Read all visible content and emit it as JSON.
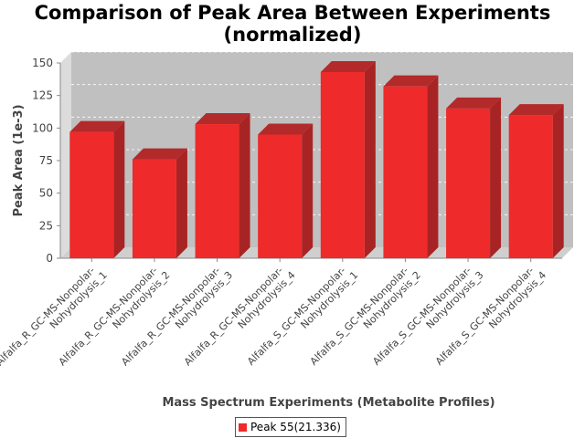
{
  "chart_data": {
    "type": "bar",
    "title": [
      "Comparison of Peak Area Between Experiments",
      "(normalized)"
    ],
    "xlabel": "Mass Spectrum Experiments (Metabolite Profiles)",
    "ylabel": "Peak Area (1e-3)",
    "ylim": [
      0,
      150
    ],
    "yticks": [
      0,
      25,
      50,
      75,
      100,
      125,
      150
    ],
    "categories": [
      [
        "Alfalfa_R_GC-MS-Nonpolar-",
        "Nohydrolysis_1"
      ],
      [
        "Alfalfa_R_GC-MS-Nonpolar-",
        "Nohydrolysis_2"
      ],
      [
        "Alfalfa_R_GC-MS-Nonpolar-",
        "Nohydrolysis_3"
      ],
      [
        "Alfalfa_R_GC-MS-Nonpolar-",
        "Nohydrolysis_4"
      ],
      [
        "Alfalfa_S_GC-MS-Nonpolar-",
        "Nohydrolysis_1"
      ],
      [
        "Alfalfa_S_GC-MS-Nonpolar-",
        "Nohydrolysis_2"
      ],
      [
        "Alfalfa_S_GC-MS-Nonpolar-",
        "Nohydrolysis_3"
      ],
      [
        "Alfalfa_S_GC-MS-Nonpolar-",
        "Nohydrolysis_4"
      ]
    ],
    "series": [
      {
        "name": "Peak 55(21.336)",
        "color": "#ee2a2a",
        "values": [
          97,
          76,
          103,
          95,
          143,
          132,
          115,
          110
        ]
      }
    ],
    "grid": true,
    "legend_position": "bottom",
    "style": "3d"
  }
}
